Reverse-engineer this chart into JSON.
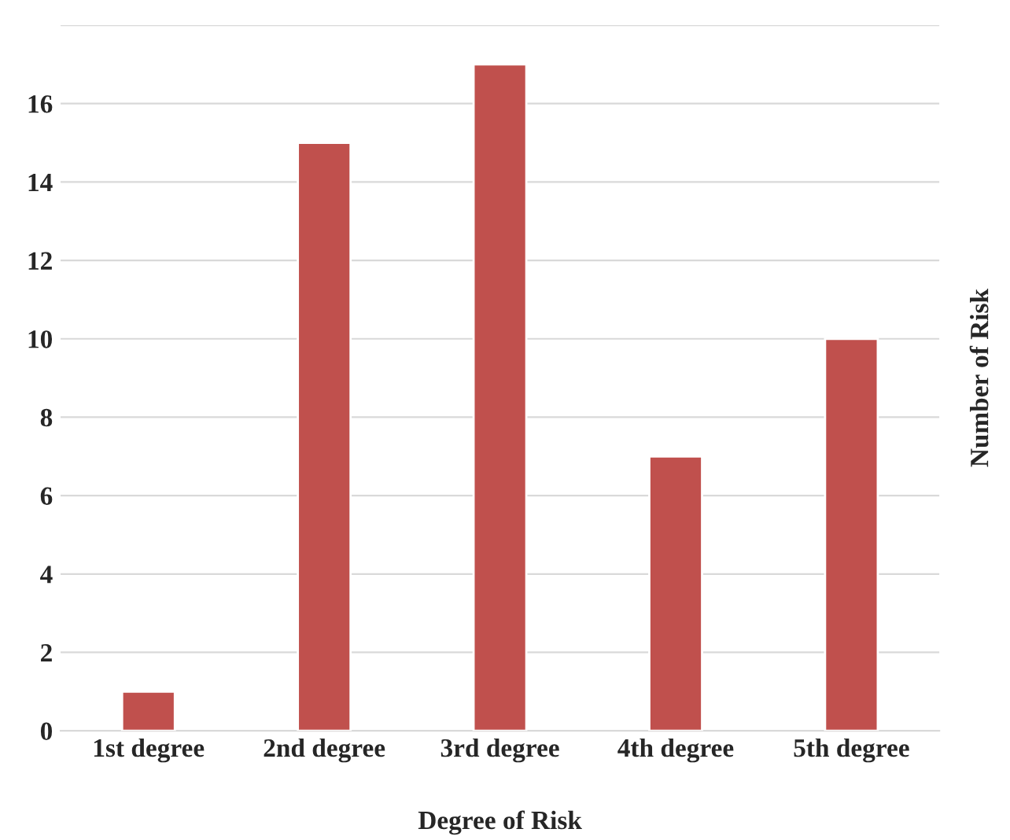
{
  "chart_data": {
    "type": "bar",
    "xlabel": "Degree of Risk",
    "ylabel": "Number of Risk",
    "categories": [
      "1st degree",
      "2nd degree",
      "3rd degree",
      "4th degree",
      "5th degree"
    ],
    "values": [
      1,
      15,
      17,
      7,
      10
    ],
    "color": "#c0504d",
    "ylim": [
      0,
      18
    ],
    "yticks": [
      0,
      2,
      4,
      6,
      8,
      10,
      12,
      14,
      16,
      {
        "value": 18,
        "label": null
      }
    ],
    "grid": "y"
  }
}
